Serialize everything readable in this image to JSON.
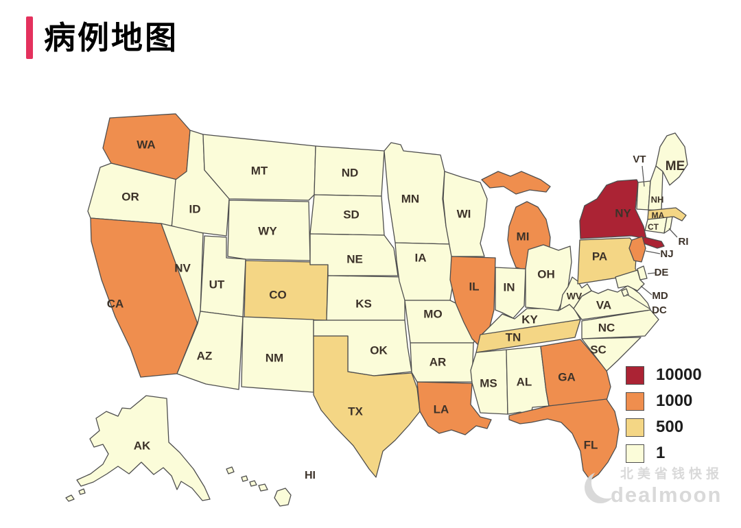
{
  "page": {
    "title": "病例地图",
    "accent_color": "#e4315d"
  },
  "legend": {
    "items": [
      {
        "label": "10000",
        "color": "#ab2334",
        "level": "10000"
      },
      {
        "label": "1000",
        "color": "#ef8e4e",
        "level": "1000"
      },
      {
        "label": "500",
        "color": "#f4d685",
        "level": "500"
      },
      {
        "label": "1",
        "color": "#fbfcd9",
        "level": "1"
      }
    ]
  },
  "watermark": {
    "line1": "北美省钱快报",
    "line2": "dealmoon"
  },
  "chart_data": {
    "type": "heatmap",
    "title": "病例地图",
    "legend_bins": [
      10000,
      1000,
      500,
      1
    ],
    "states": [
      {
        "abbr": "WA",
        "level": "1000"
      },
      {
        "abbr": "OR",
        "level": "1"
      },
      {
        "abbr": "CA",
        "level": "1000"
      },
      {
        "abbr": "ID",
        "level": "1"
      },
      {
        "abbr": "NV",
        "level": "1"
      },
      {
        "abbr": "MT",
        "level": "1"
      },
      {
        "abbr": "WY",
        "level": "1"
      },
      {
        "abbr": "UT",
        "level": "1"
      },
      {
        "abbr": "CO",
        "level": "500"
      },
      {
        "abbr": "AZ",
        "level": "1"
      },
      {
        "abbr": "NM",
        "level": "1"
      },
      {
        "abbr": "ND",
        "level": "1"
      },
      {
        "abbr": "SD",
        "level": "1"
      },
      {
        "abbr": "NE",
        "level": "1"
      },
      {
        "abbr": "KS",
        "level": "1"
      },
      {
        "abbr": "OK",
        "level": "1"
      },
      {
        "abbr": "TX",
        "level": "500"
      },
      {
        "abbr": "MN",
        "level": "1"
      },
      {
        "abbr": "IA",
        "level": "1"
      },
      {
        "abbr": "MO",
        "level": "1"
      },
      {
        "abbr": "AR",
        "level": "1"
      },
      {
        "abbr": "LA",
        "level": "1000"
      },
      {
        "abbr": "WI",
        "level": "1"
      },
      {
        "abbr": "IL",
        "level": "1000"
      },
      {
        "abbr": "MI",
        "level": "1000"
      },
      {
        "abbr": "IN",
        "level": "1"
      },
      {
        "abbr": "OH",
        "level": "1"
      },
      {
        "abbr": "KY",
        "level": "1"
      },
      {
        "abbr": "TN",
        "level": "500"
      },
      {
        "abbr": "MS",
        "level": "1"
      },
      {
        "abbr": "AL",
        "level": "1"
      },
      {
        "abbr": "GA",
        "level": "1000"
      },
      {
        "abbr": "FL",
        "level": "1000"
      },
      {
        "abbr": "SC",
        "level": "1"
      },
      {
        "abbr": "NC",
        "level": "1"
      },
      {
        "abbr": "VA",
        "level": "1"
      },
      {
        "abbr": "WV",
        "level": "1"
      },
      {
        "abbr": "PA",
        "level": "500"
      },
      {
        "abbr": "NY",
        "level": "10000"
      },
      {
        "abbr": "VT",
        "level": "1"
      },
      {
        "abbr": "NH",
        "level": "1"
      },
      {
        "abbr": "ME",
        "level": "1"
      },
      {
        "abbr": "MA",
        "level": "500"
      },
      {
        "abbr": "CT",
        "level": "1"
      },
      {
        "abbr": "RI",
        "level": "1"
      },
      {
        "abbr": "NJ",
        "level": "1000"
      },
      {
        "abbr": "DE",
        "level": "1"
      },
      {
        "abbr": "MD",
        "level": "1"
      },
      {
        "abbr": "DC",
        "level": "1"
      },
      {
        "abbr": "AK",
        "level": "1"
      },
      {
        "abbr": "HI",
        "level": "1"
      }
    ]
  }
}
